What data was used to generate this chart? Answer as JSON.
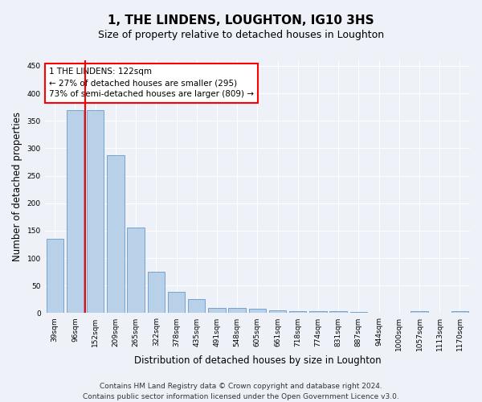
{
  "title": "1, THE LINDENS, LOUGHTON, IG10 3HS",
  "subtitle": "Size of property relative to detached houses in Loughton",
  "xlabel": "Distribution of detached houses by size in Loughton",
  "ylabel": "Number of detached properties",
  "bar_labels": [
    "39sqm",
    "96sqm",
    "152sqm",
    "209sqm",
    "265sqm",
    "322sqm",
    "378sqm",
    "435sqm",
    "491sqm",
    "548sqm",
    "605sqm",
    "661sqm",
    "718sqm",
    "774sqm",
    "831sqm",
    "887sqm",
    "944sqm",
    "1000sqm",
    "1057sqm",
    "1113sqm",
    "1170sqm"
  ],
  "bar_values": [
    135,
    370,
    370,
    288,
    155,
    75,
    38,
    25,
    10,
    10,
    8,
    5,
    4,
    3,
    3,
    2,
    0,
    0,
    4,
    0,
    4
  ],
  "bar_color": "#b8d0e8",
  "bar_edgecolor": "#6699cc",
  "vline_x_index": 1.5,
  "vline_color": "red",
  "ylim": [
    0,
    460
  ],
  "yticks": [
    0,
    50,
    100,
    150,
    200,
    250,
    300,
    350,
    400,
    450
  ],
  "annotation_text": "1 THE LINDENS: 122sqm\n← 27% of detached houses are smaller (295)\n73% of semi-detached houses are larger (809) →",
  "annotation_box_facecolor": "white",
  "annotation_box_edgecolor": "red",
  "footer_line1": "Contains HM Land Registry data © Crown copyright and database right 2024.",
  "footer_line2": "Contains public sector information licensed under the Open Government Licence v3.0.",
  "background_color": "#eef2f8",
  "grid_color": "white",
  "title_fontsize": 11,
  "subtitle_fontsize": 9,
  "axis_label_fontsize": 8.5,
  "tick_fontsize": 6.5,
  "annotation_fontsize": 7.5,
  "footer_fontsize": 6.5
}
